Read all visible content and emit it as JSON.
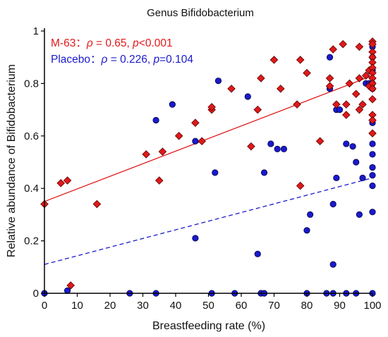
{
  "chart_data": {
    "type": "scatter",
    "title": "Genus Bifidobacterium",
    "xlabel": "Breastfeeding rate (%)",
    "ylabel": "Relative abundance of Bifidobacterium",
    "xlim": [
      0,
      100
    ],
    "ylim": [
      0,
      1
    ],
    "xticks": [
      "0",
      "10",
      "20",
      "30",
      "40",
      "50",
      "60",
      "70",
      "80",
      "90",
      "100"
    ],
    "yticks": [
      "0",
      "0.2",
      "0.4",
      "0.6",
      "0.8",
      "1"
    ],
    "grid": false,
    "annotations": {
      "m63": {
        "prefix": "M-63：",
        "rho_sym": "ρ",
        "rho_val": " = 0.65, ",
        "p_sym": "p",
        "p_val": "<0.001"
      },
      "placebo": {
        "prefix": "Placebo：",
        "rho_sym": "ρ",
        "rho_val": " = 0.226, ",
        "p_sym": "p",
        "p_val": "=0.104"
      }
    },
    "series": [
      {
        "name": "M-63",
        "color": "#e0191a",
        "marker": "diamond",
        "points": [
          [
            0,
            0.34
          ],
          [
            5,
            0.42
          ],
          [
            7,
            0.43
          ],
          [
            8,
            0.03
          ],
          [
            16,
            0.34
          ],
          [
            31,
            0.53
          ],
          [
            35,
            0.43
          ],
          [
            36,
            0.54
          ],
          [
            41,
            0.6
          ],
          [
            46,
            0.65
          ],
          [
            48,
            0.58
          ],
          [
            51,
            0.7
          ],
          [
            51,
            0.71
          ],
          [
            57,
            0.78
          ],
          [
            63,
            0.56
          ],
          [
            65,
            0.7
          ],
          [
            66,
            0.82
          ],
          [
            70,
            0.89
          ],
          [
            72,
            0.78
          ],
          [
            77,
            0.72
          ],
          [
            78,
            0.89
          ],
          [
            78,
            0.41
          ],
          [
            80,
            0.84
          ],
          [
            84,
            0.58
          ],
          [
            87,
            0.82
          ],
          [
            87,
            0.79
          ],
          [
            88,
            0.93
          ],
          [
            89,
            0.72
          ],
          [
            91,
            0.95
          ],
          [
            92,
            0.72
          ],
          [
            92,
            0.68
          ],
          [
            93,
            0.8
          ],
          [
            95,
            0.76
          ],
          [
            96,
            0.7
          ],
          [
            96,
            0.82
          ],
          [
            96,
            0.94
          ],
          [
            97,
            0.72
          ],
          [
            98,
            0.83
          ],
          [
            99,
            0.79
          ],
          [
            99,
            0.85
          ],
          [
            100,
            0.96
          ],
          [
            100,
            0.95
          ],
          [
            100,
            0.92
          ],
          [
            100,
            0.9
          ],
          [
            100,
            0.88
          ],
          [
            100,
            0.86
          ],
          [
            100,
            0.84
          ],
          [
            100,
            0.82
          ],
          [
            100,
            0.8
          ],
          [
            100,
            0.78
          ],
          [
            100,
            0.74
          ],
          [
            100,
            0.68
          ],
          [
            100,
            0.66
          ],
          [
            100,
            0.61
          ]
        ]
      },
      {
        "name": "Placebo",
        "color": "#1a1acc",
        "marker": "circle",
        "points": [
          [
            0,
            0
          ],
          [
            7,
            0.01
          ],
          [
            26,
            0
          ],
          [
            34,
            0.66
          ],
          [
            34,
            0
          ],
          [
            39,
            0.72
          ],
          [
            46,
            0.58
          ],
          [
            46,
            0.21
          ],
          [
            51,
            0
          ],
          [
            52,
            0.46
          ],
          [
            53,
            0.81
          ],
          [
            58,
            0
          ],
          [
            62,
            0.75
          ],
          [
            65,
            0.15
          ],
          [
            66,
            0
          ],
          [
            67,
            0
          ],
          [
            67,
            0.46
          ],
          [
            69,
            0.57
          ],
          [
            71,
            0.55
          ],
          [
            73,
            0.55
          ],
          [
            80,
            0.24
          ],
          [
            80,
            0
          ],
          [
            81,
            0.3
          ],
          [
            86,
            0
          ],
          [
            87,
            0.78
          ],
          [
            87,
            0.9
          ],
          [
            88,
            0.34
          ],
          [
            88,
            0.11
          ],
          [
            88,
            0
          ],
          [
            89,
            0.44
          ],
          [
            89,
            0.7
          ],
          [
            90,
            0.7
          ],
          [
            92,
            0.57
          ],
          [
            92,
            0
          ],
          [
            94,
            0.56
          ],
          [
            95,
            0.5
          ],
          [
            95,
            0
          ],
          [
            96,
            0.3
          ],
          [
            97,
            0.44
          ],
          [
            98,
            0.8
          ],
          [
            99,
            0.8
          ],
          [
            100,
            0.94
          ],
          [
            100,
            0.9
          ],
          [
            100,
            0.85
          ],
          [
            100,
            0.8
          ],
          [
            100,
            0.78
          ],
          [
            100,
            0.65
          ],
          [
            100,
            0.57
          ],
          [
            100,
            0.53
          ],
          [
            100,
            0.48
          ],
          [
            100,
            0.45
          ],
          [
            100,
            0.41
          ],
          [
            100,
            0.31
          ],
          [
            100,
            0
          ]
        ]
      }
    ],
    "fit_lines": [
      {
        "series": "M-63",
        "style": "solid",
        "color": "#e0191a",
        "x": [
          0,
          100
        ],
        "y": [
          0.35,
          0.83
        ]
      },
      {
        "series": "Placebo",
        "style": "dashed",
        "color": "#1a1acc",
        "x": [
          0,
          100
        ],
        "y": [
          0.11,
          0.44
        ]
      }
    ]
  }
}
